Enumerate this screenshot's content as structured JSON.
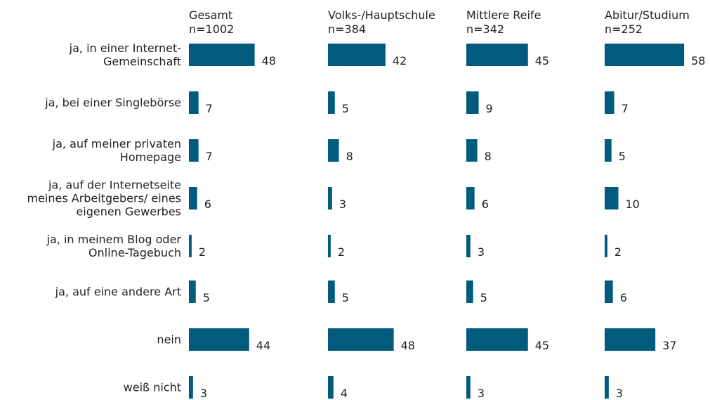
{
  "chart_data": {
    "type": "bar",
    "categories": [
      "ja, in einer Internet-Gemeinschaft",
      "ja, bei einer Singlebörse",
      "ja, auf meiner privaten Homepage",
      "ja, auf der Internetseite meines Arbeitgebers/ eines eigenen Gewerbes",
      "ja, in meinem Blog oder Online-Tagebuch",
      "ja, auf eine andere Art",
      "nein",
      "weiß nicht"
    ],
    "series": [
      {
        "name": "Gesamt",
        "subtitle": "n=1002",
        "color": "#005b7c",
        "values": [
          48,
          7,
          7,
          6,
          2,
          5,
          44,
          3
        ]
      },
      {
        "name": "Volks-/Hauptschule",
        "subtitle": "n=384",
        "color": "#005b7c",
        "values": [
          42,
          5,
          8,
          3,
          2,
          5,
          48,
          4
        ]
      },
      {
        "name": "Mittlere Reife",
        "subtitle": "n=342",
        "color": "#005b7c",
        "values": [
          45,
          9,
          8,
          6,
          3,
          5,
          45,
          3
        ]
      },
      {
        "name": "Abitur/Studium",
        "subtitle": "n=252",
        "color": "#005b7c",
        "values": [
          58,
          7,
          5,
          10,
          2,
          6,
          37,
          3
        ]
      }
    ]
  }
}
